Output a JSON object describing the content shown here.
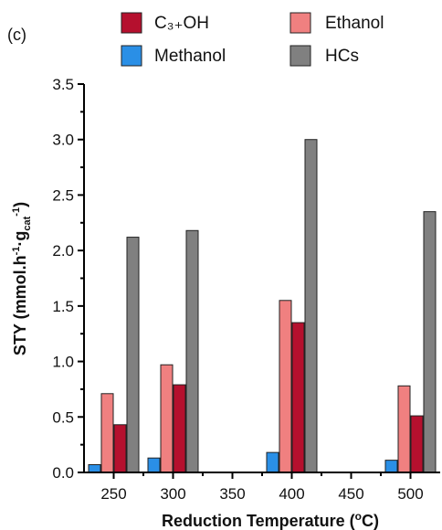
{
  "panel_label": "(c)",
  "chart_data": {
    "type": "bar",
    "xlabel_text": "Reduction Temperature (",
    "xlabel_sup": "o",
    "xlabel_end": "C)",
    "ylabel": {
      "main": "STY (mmol.h",
      "sup1": "-1",
      "mid": "·g",
      "sub": "cat",
      "sup2": "-1",
      "end": ")"
    },
    "x_ticks": [
      "250",
      "300",
      "350",
      "400",
      "450",
      "500"
    ],
    "x_tick_values": [
      250,
      300,
      350,
      400,
      450,
      500
    ],
    "xlim": [
      225,
      525
    ],
    "y_ticks": [
      "0.0",
      "0.5",
      "1.0",
      "1.5",
      "2.0",
      "2.5",
      "3.0",
      "3.5"
    ],
    "ylim": [
      0,
      3.5
    ],
    "categories": [
      250,
      300,
      400,
      500
    ],
    "series": [
      {
        "name": "Methanol",
        "color": "#2a8fe6",
        "values": [
          0.07,
          0.13,
          0.18,
          0.11
        ]
      },
      {
        "name": "Ethanol",
        "color": "#f08080",
        "values": [
          0.71,
          0.97,
          1.55,
          0.78
        ]
      },
      {
        "name": "C3+OH",
        "color": "#b5102e",
        "values": [
          0.43,
          0.79,
          1.35,
          0.51
        ]
      },
      {
        "name": "HCs",
        "color": "#808080",
        "values": [
          2.12,
          2.18,
          3.0,
          2.35
        ]
      }
    ],
    "legend": {
      "placement": "top",
      "items": [
        {
          "series": "C3+OH",
          "label": "C₃₊OH"
        },
        {
          "series": "Ethanol",
          "label": "Ethanol"
        },
        {
          "series": "Methanol",
          "label": "Methanol"
        },
        {
          "series": "HCs",
          "label": "HCs"
        }
      ]
    },
    "grid": false
  }
}
